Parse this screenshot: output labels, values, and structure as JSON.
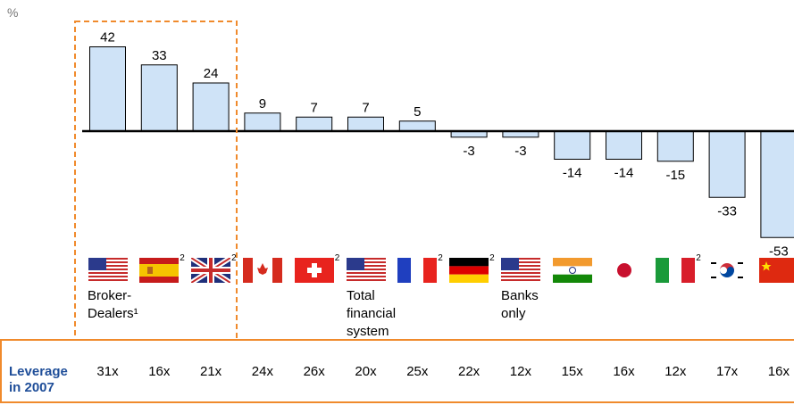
{
  "unit_label": "%",
  "chart_data": {
    "type": "bar",
    "categories": [
      "US",
      "Spain",
      "UK",
      "Canada",
      "Switzerland",
      "US",
      "France",
      "Germany",
      "US",
      "India",
      "Japan",
      "Italy",
      "Korea",
      "China"
    ],
    "values": [
      42,
      33,
      24,
      9,
      7,
      7,
      5,
      -3,
      -3,
      -14,
      -14,
      -15,
      -33,
      -53
    ],
    "value_labels": [
      "42",
      "33",
      "24",
      "9",
      "7",
      "7",
      "5",
      "-3",
      "-3",
      "-14",
      "-14",
      "-15",
      "-33",
      "-53"
    ],
    "ylim": [
      -55,
      45
    ],
    "grid": false,
    "bar_color": "#cfe3f7",
    "bar_border": "#000000"
  },
  "flags": [
    {
      "country": "us",
      "footnote": ""
    },
    {
      "country": "es",
      "footnote": "2"
    },
    {
      "country": "gb",
      "footnote": "2"
    },
    {
      "country": "ca",
      "footnote": ""
    },
    {
      "country": "ch",
      "footnote": "2"
    },
    {
      "country": "us",
      "footnote": ""
    },
    {
      "country": "fr",
      "footnote": "2"
    },
    {
      "country": "de",
      "footnote": "2"
    },
    {
      "country": "us",
      "footnote": ""
    },
    {
      "country": "in",
      "footnote": ""
    },
    {
      "country": "jp",
      "footnote": ""
    },
    {
      "country": "it",
      "footnote": "2"
    },
    {
      "country": "kr",
      "footnote": ""
    },
    {
      "country": "cn",
      "footnote": ""
    }
  ],
  "group_labels": {
    "broker": "Broker-\nDealers¹",
    "total": "Total\nfinancial\nsystem",
    "banks": "Banks\nonly"
  },
  "leverage": {
    "title": "Leverage\nin 2007",
    "values": [
      "31x",
      "16x",
      "21x",
      "24x",
      "26x",
      "20x",
      "25x",
      "22x",
      "12x",
      "15x",
      "16x",
      "12x",
      "17x",
      "16x"
    ]
  },
  "colors": {
    "highlight": "#f08a2c",
    "title_blue": "#1f4e99"
  }
}
